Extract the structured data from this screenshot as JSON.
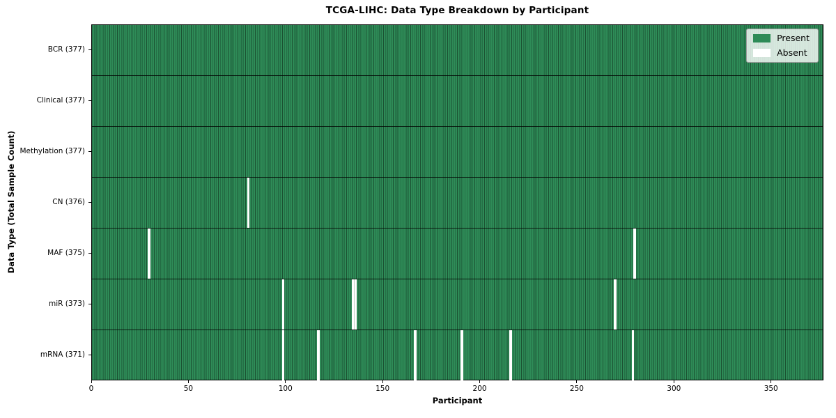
{
  "figure": {
    "title": "TCGA-LIHC: Data Type Breakdown by Participant",
    "xlabel": "Participant",
    "ylabel": "Data Type (Total Sample Count)"
  },
  "colors": {
    "present": "#2e8b57",
    "absent": "#ffffff",
    "cell_edge": "rgba(0,0,0,0.42)",
    "row_divider": "rgba(0,0,0,0.78)",
    "spine": "#000000",
    "legend_background": "rgba(255,255,255,0.8)",
    "legend_border": "#9c9c9c"
  },
  "chart_data": {
    "type": "heatmap",
    "title": "TCGA-LIHC: Data Type Breakdown by Participant",
    "xlabel": "Participant",
    "ylabel": "Data Type (Total Sample Count)",
    "legend_entries": [
      "Present",
      "Absent"
    ],
    "legend_position": "upper right",
    "x_range": [
      0,
      377
    ],
    "x_ticks": [
      0,
      50,
      100,
      150,
      200,
      250,
      300,
      350
    ],
    "total_participants": 377,
    "cell_values": {
      "present": 1,
      "absent": 0
    },
    "rows": [
      {
        "label": "BCR (377)",
        "data_type": "BCR",
        "present_count": 377,
        "absent_count": 0,
        "absent_participants": []
      },
      {
        "label": "Clinical (377)",
        "data_type": "Clinical",
        "present_count": 377,
        "absent_count": 0,
        "absent_participants": []
      },
      {
        "label": "Methylation (377)",
        "data_type": "Methylation",
        "present_count": 377,
        "absent_count": 0,
        "absent_participants": []
      },
      {
        "label": "CN (376)",
        "data_type": "CN",
        "present_count": 376,
        "absent_count": 1,
        "absent_participants": [
          80
        ]
      },
      {
        "label": "MAF (375)",
        "data_type": "MAF",
        "present_count": 375,
        "absent_count": 2,
        "absent_participants": [
          29,
          279
        ]
      },
      {
        "label": "miR (373)",
        "data_type": "miR",
        "present_count": 373,
        "absent_count": 4,
        "absent_participants": [
          98,
          134,
          135,
          269
        ]
      },
      {
        "label": "mRNA (371)",
        "data_type": "mRNA",
        "present_count": 371,
        "absent_count": 6,
        "absent_participants": [
          98,
          116,
          166,
          190,
          215,
          278
        ]
      }
    ]
  }
}
